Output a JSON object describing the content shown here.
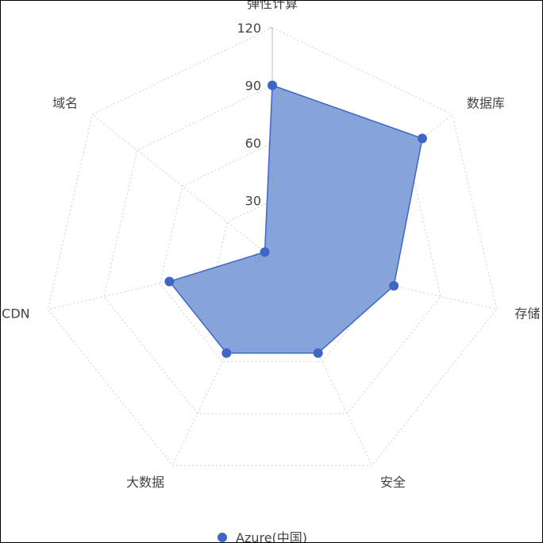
{
  "chart_data": {
    "type": "radar",
    "indicators": [
      "弹性计算",
      "数据库",
      "存储",
      "安全",
      "大数据",
      "CDN",
      "域名"
    ],
    "max": 120,
    "ticks": [
      0,
      30,
      60,
      90,
      120
    ],
    "series": [
      {
        "name": "Azure(中国)",
        "values": [
          90,
          100,
          65,
          55,
          55,
          55,
          5
        ]
      }
    ],
    "legend": "bottom-center",
    "grid": "dotted-polygon",
    "colors": {
      "series": "#3f66c6",
      "fill": "#7f9ed8",
      "grid": "#cfcfcf",
      "axis_zero": "#bdbdbd"
    }
  }
}
